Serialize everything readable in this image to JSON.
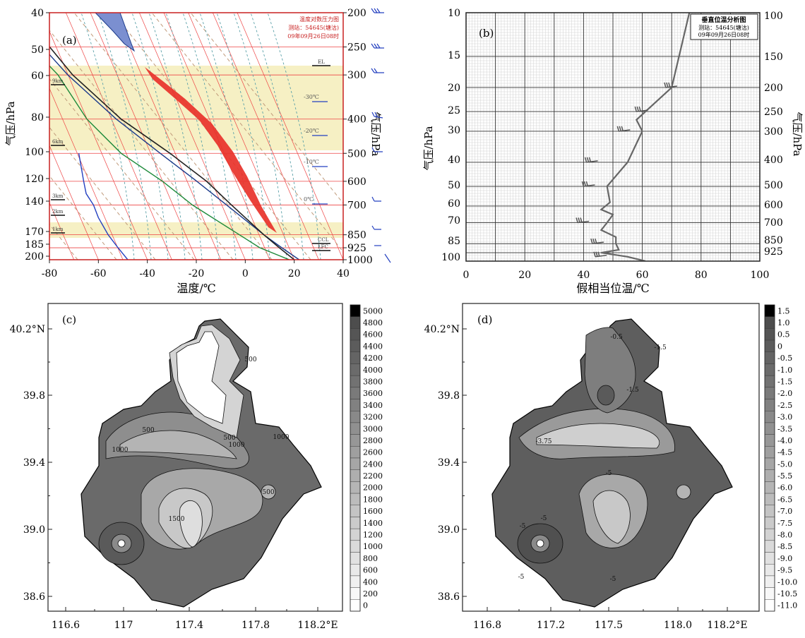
{
  "chart_data": [
    {
      "panel": "(a)",
      "type": "line",
      "xlabel": "温度/℃",
      "ylabel_left": "气压/hPa",
      "ylabel_right": "气压/hPa",
      "xlim": [
        -80,
        40
      ],
      "x_ticks": [
        "-80",
        "-60",
        "-40",
        "-20",
        "0",
        "20",
        "40"
      ],
      "y_ticks_left": [
        "40",
        "50",
        "60",
        "80",
        "100",
        "120",
        "140",
        "170",
        "185",
        "200"
      ],
      "y_ticks_right": [
        "200",
        "250",
        "300",
        "400",
        "500",
        "600",
        "700",
        "850",
        "925",
        "1000"
      ],
      "right_axis_pressure": [
        200,
        250,
        300,
        400,
        500,
        600,
        700,
        850,
        925,
        1000
      ],
      "inset_title": [
        "温度对数压力图",
        "测站：54645(塘沽)",
        "09年09月26日08时"
      ],
      "height_marks": [
        "9km",
        "6km",
        "3km",
        "2km",
        "1km"
      ],
      "temp_marks": [
        "-30℃",
        "-20℃",
        "-10℃",
        "0℃"
      ],
      "level_marks": [
        "EL",
        "CCL",
        "LFC"
      ],
      "series": [
        {
          "name": "temperature",
          "color": "#1a3a8a",
          "points": [
            [
              -52,
              200
            ],
            [
              -40,
              300
            ],
            [
              -28,
              400
            ],
            [
              -16,
              500
            ],
            [
              -6,
              600
            ],
            [
              2,
              700
            ],
            [
              12,
              850
            ],
            [
              17,
              925
            ],
            [
              22,
              1000
            ]
          ]
        },
        {
          "name": "dewpoint",
          "color": "#1d8a3a",
          "points": [
            [
              -62,
              200
            ],
            [
              -50,
              250
            ],
            [
              -44,
              300
            ],
            [
              -40,
              400
            ],
            [
              -32,
              500
            ],
            [
              -20,
              600
            ],
            [
              -12,
              700
            ],
            [
              2,
              850
            ],
            [
              8,
              925
            ],
            [
              18,
              1000
            ]
          ]
        },
        {
          "name": "parcel",
          "color": "#222222",
          "points": [
            [
              -48,
              200
            ],
            [
              -38,
              300
            ],
            [
              -26,
              400
            ],
            [
              -12,
              500
            ],
            [
              -2,
              600
            ],
            [
              4,
              700
            ],
            [
              12,
              850
            ],
            [
              16,
              925
            ],
            [
              20,
              1000
            ]
          ]
        },
        {
          "name": "wind-profile",
          "color": "#2440c0",
          "points": [
            [
              -68,
              500
            ],
            [
              -66,
              600
            ],
            [
              -65,
              650
            ],
            [
              -62,
              700
            ],
            [
              -60,
              760
            ],
            [
              -56,
              850
            ],
            [
              -52,
              925
            ],
            [
              -48,
              1000
            ]
          ]
        }
      ]
    },
    {
      "panel": "(b)",
      "type": "line",
      "xlabel": "假相当位温/℃",
      "ylabel_left": "气压/hPa",
      "ylabel_right": "气压/hPa",
      "xlim": [
        0,
        100
      ],
      "x_ticks": [
        "0",
        "20",
        "40",
        "60",
        "80",
        "100"
      ],
      "y_ticks_left": [
        "10",
        "15",
        "20",
        "25",
        "30",
        "40",
        "50",
        "60",
        "70",
        "85",
        "100"
      ],
      "y_ticks_right": [
        "100",
        "150",
        "200",
        "250",
        "300",
        "400",
        "500",
        "600",
        "700",
        "850",
        "925"
      ],
      "inset_title": [
        "垂直位温分析图",
        "测站：54645(塘沽)",
        "09年09月26日08时"
      ],
      "series": [
        {
          "name": "theta-se",
          "points": [
            [
              76,
              100
            ],
            [
              70,
              200
            ],
            [
              58,
              270
            ],
            [
              60,
              300
            ],
            [
              55,
              400
            ],
            [
              48,
              500
            ],
            [
              49,
              580
            ],
            [
              46,
              620
            ],
            [
              50,
              650
            ],
            [
              48,
              700
            ],
            [
              46,
              750
            ],
            [
              51,
              800
            ],
            [
              51,
              850
            ],
            [
              52,
              900
            ],
            [
              46,
              925
            ],
            [
              55,
              960
            ],
            [
              61,
              1000
            ]
          ]
        }
      ]
    },
    {
      "panel": "(c)",
      "type": "heatmap",
      "x_ticks": [
        "116.6",
        "117",
        "117.4",
        "117.8",
        "118.2°E"
      ],
      "y_ticks": [
        "40.2°N",
        "39.8",
        "39.4",
        "39.0",
        "38.6"
      ],
      "xlim": [
        116.6,
        118.2
      ],
      "ylim": [
        38.5,
        40.3
      ],
      "colorbar": [
        "5000",
        "4800",
        "4600",
        "4400",
        "4200",
        "4000",
        "3800",
        "3600",
        "3400",
        "3200",
        "3000",
        "2800",
        "2600",
        "2400",
        "2200",
        "2000",
        "1800",
        "1600",
        "1400",
        "1200",
        "1000",
        "800",
        "600",
        "400",
        "200",
        "0"
      ],
      "contour_labels": [
        "500",
        "500",
        "500",
        "1000",
        "1000",
        "1000",
        "1500",
        "500"
      ]
    },
    {
      "panel": "(d)",
      "type": "heatmap",
      "x_ticks": [
        "116.8",
        "117.2",
        "117.5",
        "118.0",
        "118.2°E"
      ],
      "y_ticks": [
        "40.2°N",
        "39.8",
        "39.4",
        "39.0",
        "38.6"
      ],
      "xlim": [
        116.6,
        118.2
      ],
      "ylim": [
        38.5,
        40.3
      ],
      "colorbar": [
        "1.5",
        "1.0",
        "0.5",
        "0",
        "-0.5",
        "-1.0",
        "-1.5",
        "-2.0",
        "-2.5",
        "-3.0",
        "-3.5",
        "-4.0",
        "-4.5",
        "-5.0",
        "-5.5",
        "-6.0",
        "-6.5",
        "-7.0",
        "-7.5",
        "-8.0",
        "-8.5",
        "-9.0",
        "-9.5",
        "-10.0",
        "-10.5",
        "-11.0"
      ],
      "contour_labels": [
        "-0.5",
        "-1.5",
        "-1.5",
        "-3.75",
        "-5",
        "-5",
        "-5",
        "-5",
        "-5"
      ]
    }
  ]
}
